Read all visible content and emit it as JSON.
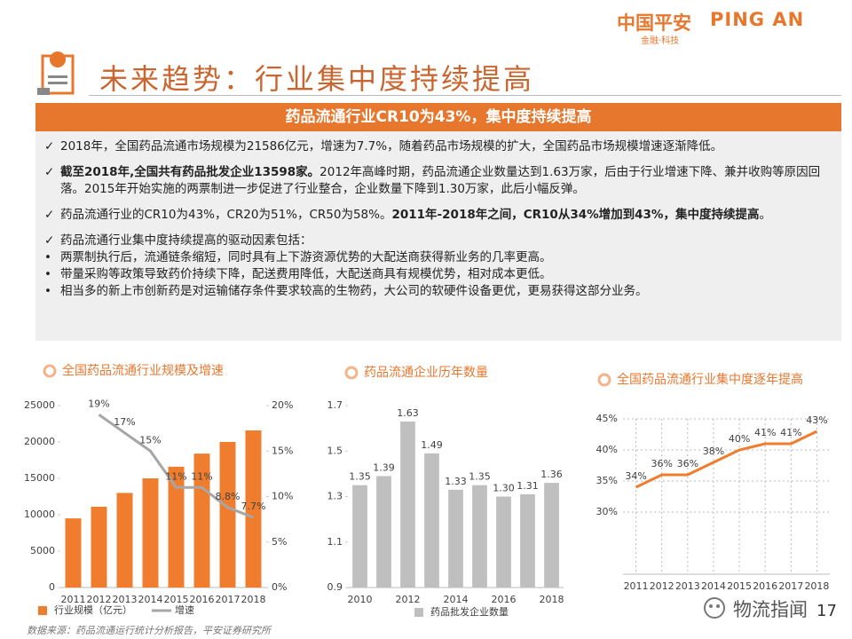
{
  "header": {
    "brand_cn": "中国平安",
    "brand_en": "PING AN",
    "tagline": "金融·科技"
  },
  "title": "未来趋势：行业集中度持续提高",
  "banner": "药品流通行业CR10为43%，集中度持续提高",
  "bullets": [
    {
      "marker": "✓",
      "parts": [
        {
          "text": "2018年，全国药品流通市场规模为21586亿元，增速为7.7%，随着药品市场规模的扩大，全国药品市场规模增速逐渐降低。",
          "bold": false
        }
      ]
    },
    {
      "marker": "✓",
      "parts": [
        {
          "text": "截至2018年,全国共有药品批发企业13598家。",
          "bold": true
        },
        {
          "text": "2012年高峰时期，药品流通企业数量达到1.63万家，后由于行业增速下降、兼并收购等原因回落。2015年开始实施的两票制进一步促进了行业整合，企业数量下降到1.30万家，此后小幅反弹。",
          "bold": false
        }
      ]
    },
    {
      "marker": "✓",
      "parts": [
        {
          "text": "药品流通行业的CR10为43%，CR20为51%，CR50为58%。",
          "bold": false
        },
        {
          "text": "2011年-2018年之间，CR10从34%增加到43%，集中度持续提高",
          "bold": true
        },
        {
          "text": "。",
          "bold": false
        }
      ]
    },
    {
      "marker": "✓",
      "parts": [
        {
          "text": "药品流通行业集中度持续提高的驱动因素包括：",
          "bold": false
        }
      ]
    },
    {
      "marker": "•",
      "parts": [
        {
          "text": "两票制执行后，流通链条缩短，同时具有上下游资源优势的大配送商获得新业务的几率更高。",
          "bold": false
        }
      ]
    },
    {
      "marker": "•",
      "parts": [
        {
          "text": "带量采购等政策导致药价持续下降，配送费用降低，大配送商具有规模优势，相对成本更低。",
          "bold": false
        }
      ]
    },
    {
      "marker": "•",
      "parts": [
        {
          "text": "相当多的新上市创新药是对运输储存条件要求较高的生物药，大公司的软硬件设备更优，更易获得这部分业务。",
          "bold": false
        }
      ]
    }
  ],
  "chart_data": [
    {
      "type": "combo",
      "title": "全国药品流通行业规模及增速",
      "categories": [
        "2011",
        "2012",
        "2013",
        "2014",
        "2015",
        "2016",
        "2017",
        "2018"
      ],
      "series": [
        {
          "name": "行业规模（亿元）",
          "type": "bar",
          "color": "#ef7d2d",
          "values": [
            9500,
            11100,
            13000,
            15000,
            16600,
            18400,
            20000,
            21586
          ]
        },
        {
          "name": "增速",
          "type": "line",
          "axis": "y2",
          "color": "#a6a6a6",
          "values": [
            null,
            19,
            17,
            15,
            11,
            11,
            8.8,
            7.7
          ],
          "value_labels": [
            null,
            "19%",
            "17%",
            "15%",
            "11%",
            "11%",
            "8.8%",
            "7.7%"
          ]
        }
      ],
      "ylim": [
        0,
        25000
      ],
      "yticks": [
        0,
        5000,
        10000,
        15000,
        20000,
        25000
      ],
      "y2lim": [
        0,
        20
      ],
      "y2ticks": [
        {
          "value": 0,
          "label": "0%"
        },
        {
          "value": 5,
          "label": "5%"
        },
        {
          "value": 10,
          "label": "10%"
        },
        {
          "value": 15,
          "label": "15%"
        },
        {
          "value": 20,
          "label": "20%"
        }
      ],
      "grid": false
    },
    {
      "type": "bar",
      "title": "药品流通企业历年数量",
      "categories": [
        "2010",
        null,
        "2012",
        null,
        "2014",
        null,
        "2016",
        null,
        "2018"
      ],
      "series": [
        {
          "name": "药品批发企业数量",
          "color": "#bfbfbf",
          "values": [
            1.35,
            1.39,
            1.63,
            1.49,
            1.33,
            1.35,
            1.3,
            1.31,
            1.36
          ],
          "value_labels": [
            "1.35",
            "1.39",
            "1.63",
            "1.49",
            "1.33",
            "1.35",
            "1.30",
            "1.31",
            "1.36"
          ]
        }
      ],
      "ylim": [
        0.9,
        1.7
      ],
      "yticks": [
        0.9,
        1.1,
        1.3,
        1.5,
        1.7
      ],
      "grid": false
    },
    {
      "type": "line",
      "title": "全国药品流通行业集中度逐年提高",
      "categories": [
        "2011",
        "2012",
        "2013",
        "2014",
        "2015",
        "2016",
        "2017",
        "2018"
      ],
      "series": [
        {
          "color": "#ef7d2d",
          "values": [
            34,
            36,
            36,
            38,
            40,
            41,
            41,
            43
          ],
          "value_labels": [
            "34%",
            "36%",
            "36%",
            "38%",
            "40%",
            "41%",
            "41%",
            "43%"
          ]
        }
      ],
      "ylim": [
        20,
        45
      ],
      "yticks": [
        {
          "value": 30,
          "label": "30%"
        },
        {
          "value": 35,
          "label": "35%"
        },
        {
          "value": 40,
          "label": "40%"
        },
        {
          "value": 45,
          "label": "45%"
        }
      ],
      "grid": true
    }
  ],
  "footer": {
    "source": "数据来源：药品流通运行统计分析报告，平安证券研究所",
    "page": "17",
    "watermark": "物流指闻"
  }
}
